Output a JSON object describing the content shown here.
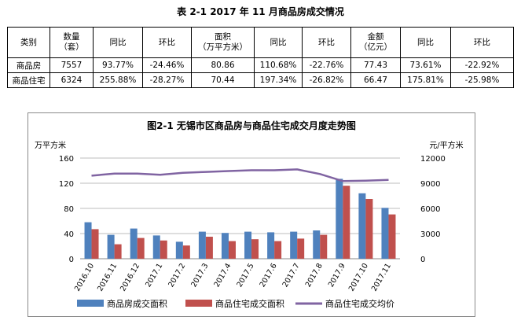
{
  "table": {
    "title": "表 2-1    2017 年 11 月商品房成交情况",
    "headers": [
      [
        "类别"
      ],
      [
        "数量",
        "（套）"
      ],
      [
        "同比"
      ],
      [
        "环比"
      ],
      [
        "面积",
        "（万平方米）"
      ],
      [
        "同比"
      ],
      [
        "环比"
      ],
      [
        "金额",
        "（亿元）"
      ],
      [
        "同比"
      ],
      [
        "环比"
      ]
    ],
    "rows": [
      [
        "商品房",
        "7557",
        "93.77%",
        "-24.46%",
        "80.86",
        "110.68%",
        "-22.76%",
        "77.43",
        "73.61%",
        "-22.92%"
      ],
      [
        "商品住宅",
        "6324",
        "255.88%",
        "-28.27%",
        "70.44",
        "197.34%",
        "-26.82%",
        "66.47",
        "175.81%",
        "-25.98%"
      ]
    ]
  },
  "chart_data": {
    "type": "bar",
    "title": "图2-1 无锡市区商品房与商品住宅成交月度走势图",
    "ylabel_left": "万平方米",
    "ylabel_right": "元/平方米",
    "categories": [
      "2016.10",
      "2016.11",
      "2016.12",
      "2017.1",
      "2017.2",
      "2017.3",
      "2017.4",
      "2017.5",
      "2017.6",
      "2017.7",
      "2017.8",
      "2017.9",
      "2017.10",
      "2017.11"
    ],
    "ylim_left": [
      0,
      160
    ],
    "yticks_left": [
      "0",
      "40",
      "80",
      "120",
      "160"
    ],
    "ylim_right": [
      0,
      12000
    ],
    "yticks_right": [
      "0",
      "3000",
      "6000",
      "9000",
      "12000"
    ],
    "series": [
      {
        "name": "商品房成交面积",
        "kind": "bar",
        "axis": "left",
        "color": "#4f81bd",
        "values": [
          58,
          38,
          48,
          37,
          27,
          43,
          41,
          43,
          42,
          43,
          45,
          127,
          104,
          80.86
        ]
      },
      {
        "name": "商品住宅成交面积",
        "kind": "bar",
        "axis": "left",
        "color": "#c0504d",
        "values": [
          47,
          23,
          33,
          29,
          21,
          35,
          28,
          31,
          28,
          32,
          38,
          116,
          95,
          70.44
        ]
      },
      {
        "name": "商品住宅成交均价",
        "kind": "line",
        "axis": "right",
        "color": "#8064a2",
        "values": [
          9900,
          10150,
          10150,
          10000,
          10250,
          10350,
          10450,
          10550,
          10550,
          10650,
          10100,
          9250,
          9300,
          9400
        ]
      }
    ],
    "legend_position": "bottom",
    "grid": true
  }
}
